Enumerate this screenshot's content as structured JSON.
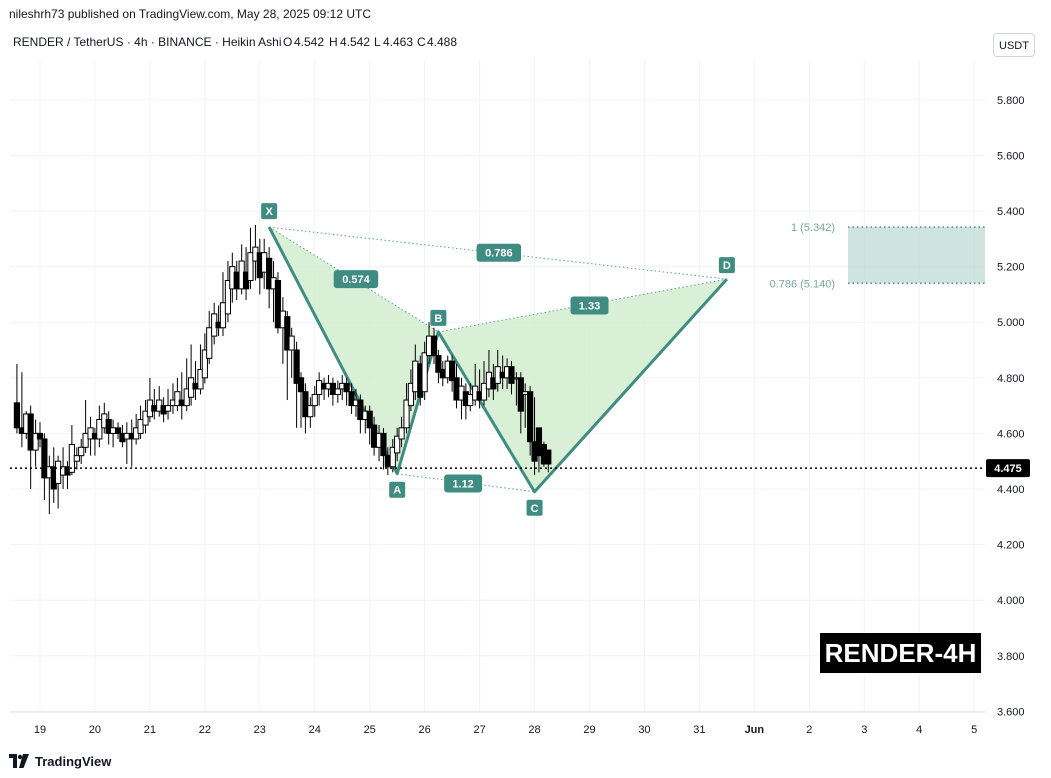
{
  "header": {
    "publisher_line": "nileshrh73 published on TradingView.com, May 28, 2025 09:12 UTC",
    "symbol": "RENDER / TetherUS · 4h · BINANCE · Heikin Ashi",
    "ohlc": {
      "O": "4.542",
      "H": "4.542",
      "L": "4.463",
      "C": "4.488"
    }
  },
  "currency_label": "USDT",
  "watermark": "RENDER-4H",
  "footer_brand": "TradingView",
  "colors": {
    "pattern_line": "#3f8c82",
    "pattern_fill": "#cfeccd",
    "label_bg": "#3f8c82",
    "zone_fill": "#bfd9d4",
    "candle": "#000000",
    "price_tag": "#000000"
  },
  "chart_data": {
    "type": "candlestick",
    "price_scale": {
      "min": 3.6,
      "max": 6.0,
      "ticks": [
        "3.600",
        "3.800",
        "4.000",
        "4.200",
        "4.400",
        "4.600",
        "4.800",
        "5.000",
        "5.200",
        "5.400",
        "5.600",
        "5.800"
      ]
    },
    "time_axis": {
      "labels": [
        {
          "t": 19,
          "label": "19"
        },
        {
          "t": 20,
          "label": "20"
        },
        {
          "t": 21,
          "label": "21"
        },
        {
          "t": 22,
          "label": "22"
        },
        {
          "t": 23,
          "label": "23"
        },
        {
          "t": 24,
          "label": "24"
        },
        {
          "t": 25,
          "label": "25"
        },
        {
          "t": 26,
          "label": "26"
        },
        {
          "t": 27,
          "label": "27"
        },
        {
          "t": 28,
          "label": "28"
        },
        {
          "t": 29,
          "label": "29"
        },
        {
          "t": 30,
          "label": "30"
        },
        {
          "t": 31,
          "label": "31"
        },
        {
          "t": 32,
          "label": "Jun"
        },
        {
          "t": 33,
          "label": "2"
        },
        {
          "t": 34,
          "label": "3"
        },
        {
          "t": 35,
          "label": "4"
        },
        {
          "t": 36,
          "label": "5"
        }
      ]
    },
    "current_price": "4.475",
    "candles": [
      [
        18.58,
        4.71,
        4.62,
        4.85,
        4.6
      ],
      [
        18.67,
        4.62,
        4.6,
        4.82,
        4.55
      ],
      [
        18.75,
        4.6,
        4.67,
        4.68,
        4.58
      ],
      [
        18.83,
        4.67,
        4.54,
        4.7,
        4.4
      ],
      [
        18.92,
        4.54,
        4.6,
        4.65,
        4.48
      ],
      [
        19.0,
        4.6,
        4.58,
        4.64,
        4.55
      ],
      [
        19.08,
        4.58,
        4.44,
        4.6,
        4.36
      ],
      [
        19.17,
        4.44,
        4.48,
        4.52,
        4.31
      ],
      [
        19.25,
        4.48,
        4.4,
        4.55,
        4.35
      ],
      [
        19.33,
        4.42,
        4.5,
        4.52,
        4.33
      ],
      [
        19.42,
        4.45,
        4.48,
        4.55,
        4.4
      ],
      [
        19.5,
        4.48,
        4.45,
        4.5,
        4.4
      ],
      [
        19.58,
        4.46,
        4.56,
        4.63,
        4.45
      ],
      [
        19.67,
        4.5,
        4.52,
        4.55,
        4.47
      ],
      [
        19.75,
        4.52,
        4.55,
        4.58,
        4.49
      ],
      [
        19.83,
        4.55,
        4.6,
        4.72,
        4.53
      ],
      [
        19.92,
        4.58,
        4.62,
        4.66,
        4.52
      ],
      [
        20.0,
        4.6,
        4.58,
        4.62,
        4.52
      ],
      [
        20.08,
        4.58,
        4.65,
        4.7,
        4.55
      ],
      [
        20.17,
        4.62,
        4.67,
        4.71,
        4.6
      ],
      [
        20.25,
        4.65,
        4.6,
        4.68,
        4.56
      ],
      [
        20.33,
        4.6,
        4.62,
        4.65,
        4.55
      ],
      [
        20.42,
        4.62,
        4.6,
        4.64,
        4.58
      ],
      [
        20.5,
        4.6,
        4.57,
        4.63,
        4.55
      ],
      [
        20.58,
        4.58,
        4.6,
        4.64,
        4.49
      ],
      [
        20.67,
        4.6,
        4.58,
        4.65,
        4.48
      ],
      [
        20.75,
        4.58,
        4.62,
        4.67,
        4.56
      ],
      [
        20.83,
        4.6,
        4.65,
        4.7,
        4.58
      ],
      [
        20.92,
        4.63,
        4.68,
        4.72,
        4.6
      ],
      [
        21.0,
        4.66,
        4.72,
        4.8,
        4.64
      ],
      [
        21.08,
        4.7,
        4.68,
        4.76,
        4.65
      ],
      [
        21.17,
        4.68,
        4.72,
        4.77,
        4.66
      ],
      [
        21.25,
        4.7,
        4.67,
        4.73,
        4.64
      ],
      [
        21.33,
        4.68,
        4.7,
        4.76,
        4.65
      ],
      [
        21.42,
        4.7,
        4.72,
        4.78,
        4.67
      ],
      [
        21.5,
        4.7,
        4.75,
        4.8,
        4.68
      ],
      [
        21.58,
        4.72,
        4.7,
        4.82,
        4.65
      ],
      [
        21.67,
        4.7,
        4.76,
        4.87,
        4.68
      ],
      [
        21.75,
        4.73,
        4.8,
        4.92,
        4.7
      ],
      [
        21.83,
        4.78,
        4.76,
        4.86,
        4.72
      ],
      [
        21.92,
        4.76,
        4.83,
        4.92,
        4.74
      ],
      [
        22.0,
        4.8,
        4.9,
        4.96,
        4.78
      ],
      [
        22.08,
        4.87,
        4.98,
        5.04,
        4.85
      ],
      [
        22.17,
        4.95,
        5.03,
        5.07,
        4.92
      ],
      [
        22.25,
        5.0,
        4.98,
        5.06,
        4.95
      ],
      [
        22.33,
        4.98,
        5.07,
        5.18,
        4.95
      ],
      [
        22.42,
        5.03,
        5.15,
        5.22,
        5.0
      ],
      [
        22.5,
        5.12,
        5.2,
        5.25,
        5.07
      ],
      [
        22.58,
        5.18,
        5.12,
        5.22,
        5.08
      ],
      [
        22.67,
        5.12,
        5.22,
        5.28,
        5.1
      ],
      [
        22.75,
        5.18,
        5.12,
        5.27,
        5.08
      ],
      [
        22.83,
        5.15,
        5.25,
        5.34,
        5.12
      ],
      [
        22.92,
        5.22,
        5.27,
        5.35,
        5.15
      ],
      [
        23.0,
        5.25,
        5.16,
        5.3,
        5.1
      ],
      [
        23.08,
        5.18,
        5.25,
        5.3,
        5.12
      ],
      [
        23.17,
        5.23,
        5.12,
        5.27,
        5.05
      ],
      [
        23.25,
        5.12,
        5.16,
        5.22,
        5.0
      ],
      [
        23.33,
        5.15,
        4.98,
        5.18,
        4.96
      ],
      [
        23.42,
        4.98,
        5.04,
        5.09,
        4.85
      ],
      [
        23.5,
        5.02,
        4.9,
        5.04,
        4.72
      ],
      [
        23.58,
        4.9,
        4.95,
        4.98,
        4.8
      ],
      [
        23.67,
        4.9,
        4.78,
        4.93,
        4.62
      ],
      [
        23.75,
        4.8,
        4.75,
        4.82,
        4.62
      ],
      [
        23.83,
        4.75,
        4.66,
        4.78,
        4.6
      ],
      [
        23.92,
        4.66,
        4.7,
        4.73,
        4.62
      ],
      [
        24.0,
        4.7,
        4.74,
        4.77,
        4.66
      ],
      [
        24.08,
        4.74,
        4.79,
        4.82,
        4.7
      ],
      [
        24.17,
        4.78,
        4.76,
        4.8,
        4.72
      ],
      [
        24.25,
        4.76,
        4.78,
        4.81,
        4.73
      ],
      [
        24.33,
        4.78,
        4.74,
        4.8,
        4.7
      ],
      [
        24.42,
        4.74,
        4.76,
        4.79,
        4.71
      ],
      [
        24.5,
        4.76,
        4.78,
        4.81,
        4.72
      ],
      [
        24.58,
        4.78,
        4.75,
        4.8,
        4.7
      ],
      [
        24.67,
        4.75,
        4.7,
        4.78,
        4.67
      ],
      [
        24.75,
        4.7,
        4.72,
        4.76,
        4.66
      ],
      [
        24.83,
        4.72,
        4.65,
        4.74,
        4.6
      ],
      [
        24.92,
        4.65,
        4.68,
        4.7,
        4.6
      ],
      [
        25.0,
        4.68,
        4.62,
        4.7,
        4.56
      ],
      [
        25.08,
        4.63,
        4.55,
        4.66,
        4.52
      ],
      [
        25.17,
        4.55,
        4.6,
        4.63,
        4.5
      ],
      [
        25.25,
        4.6,
        4.52,
        4.62,
        4.47
      ],
      [
        25.33,
        4.52,
        4.48,
        4.55,
        4.45
      ],
      [
        25.42,
        4.48,
        4.55,
        4.58,
        4.46
      ],
      [
        25.5,
        4.53,
        4.59,
        4.62,
        4.5
      ],
      [
        25.58,
        4.58,
        4.62,
        4.66,
        4.55
      ],
      [
        25.67,
        4.62,
        4.72,
        4.78,
        4.6
      ],
      [
        25.75,
        4.7,
        4.78,
        4.83,
        4.68
      ],
      [
        25.83,
        4.75,
        4.86,
        4.92,
        4.72
      ],
      [
        25.92,
        4.85,
        4.73,
        4.88,
        4.7
      ],
      [
        26.0,
        4.75,
        4.89,
        4.93,
        4.72
      ],
      [
        26.08,
        4.88,
        4.95,
        5.0,
        4.85
      ],
      [
        26.17,
        4.95,
        4.88,
        4.98,
        4.85
      ],
      [
        26.25,
        4.88,
        4.82,
        4.9,
        4.78
      ],
      [
        26.33,
        4.83,
        4.8,
        4.86,
        4.77
      ],
      [
        26.42,
        4.8,
        4.86,
        4.88,
        4.78
      ],
      [
        26.5,
        4.86,
        4.79,
        4.88,
        4.75
      ],
      [
        26.58,
        4.8,
        4.72,
        4.85,
        4.69
      ],
      [
        26.67,
        4.72,
        4.77,
        4.8,
        4.65
      ],
      [
        26.75,
        4.75,
        4.7,
        4.78,
        4.65
      ],
      [
        26.83,
        4.7,
        4.74,
        4.78,
        4.68
      ],
      [
        26.92,
        4.72,
        4.77,
        4.85,
        4.7
      ],
      [
        27.0,
        4.75,
        4.72,
        4.83,
        4.69
      ],
      [
        27.08,
        4.72,
        4.78,
        4.86,
        4.7
      ],
      [
        27.17,
        4.76,
        4.82,
        4.9,
        4.73
      ],
      [
        27.25,
        4.8,
        4.76,
        4.85,
        4.72
      ],
      [
        27.33,
        4.78,
        4.84,
        4.9,
        4.75
      ],
      [
        27.42,
        4.82,
        4.8,
        4.88,
        4.76
      ],
      [
        27.5,
        4.8,
        4.84,
        4.87,
        4.76
      ],
      [
        27.58,
        4.84,
        4.78,
        4.86,
        4.74
      ],
      [
        27.67,
        4.8,
        4.8,
        4.82,
        4.7
      ],
      [
        27.75,
        4.8,
        4.68,
        4.82,
        4.6
      ],
      [
        27.83,
        4.74,
        4.75,
        4.78,
        4.62
      ],
      [
        27.92,
        4.75,
        4.57,
        4.77,
        4.52
      ],
      [
        28.0,
        4.57,
        4.5,
        4.73,
        4.45
      ],
      [
        28.08,
        4.62,
        4.52,
        4.62,
        4.46
      ],
      [
        28.17,
        4.56,
        4.49,
        4.57,
        4.48
      ],
      [
        28.25,
        4.54,
        4.49,
        4.54,
        4.46
      ]
    ],
    "harmonic_pattern": {
      "points": [
        {
          "label": "X",
          "t": 23.17,
          "price": 5.342
        },
        {
          "label": "A",
          "t": 25.5,
          "price": 4.455
        },
        {
          "label": "B",
          "t": 26.25,
          "price": 4.965
        },
        {
          "label": "C",
          "t": 28.0,
          "price": 4.39
        },
        {
          "label": "D",
          "t": 31.5,
          "price": 5.155
        }
      ],
      "ratios": [
        {
          "value": "0.574",
          "t": 24.75,
          "price": 5.155
        },
        {
          "value": "0.786",
          "t": 27.35,
          "price": 5.25
        },
        {
          "value": "1.33",
          "t": 29.0,
          "price": 5.06
        },
        {
          "value": "1.12",
          "t": 26.7,
          "price": 4.42
        }
      ]
    },
    "target_zone": {
      "upper": {
        "label": "1 (5.342)",
        "price": 5.342
      },
      "lower": {
        "label": "0.786 (5.140)",
        "price": 5.14
      }
    }
  }
}
